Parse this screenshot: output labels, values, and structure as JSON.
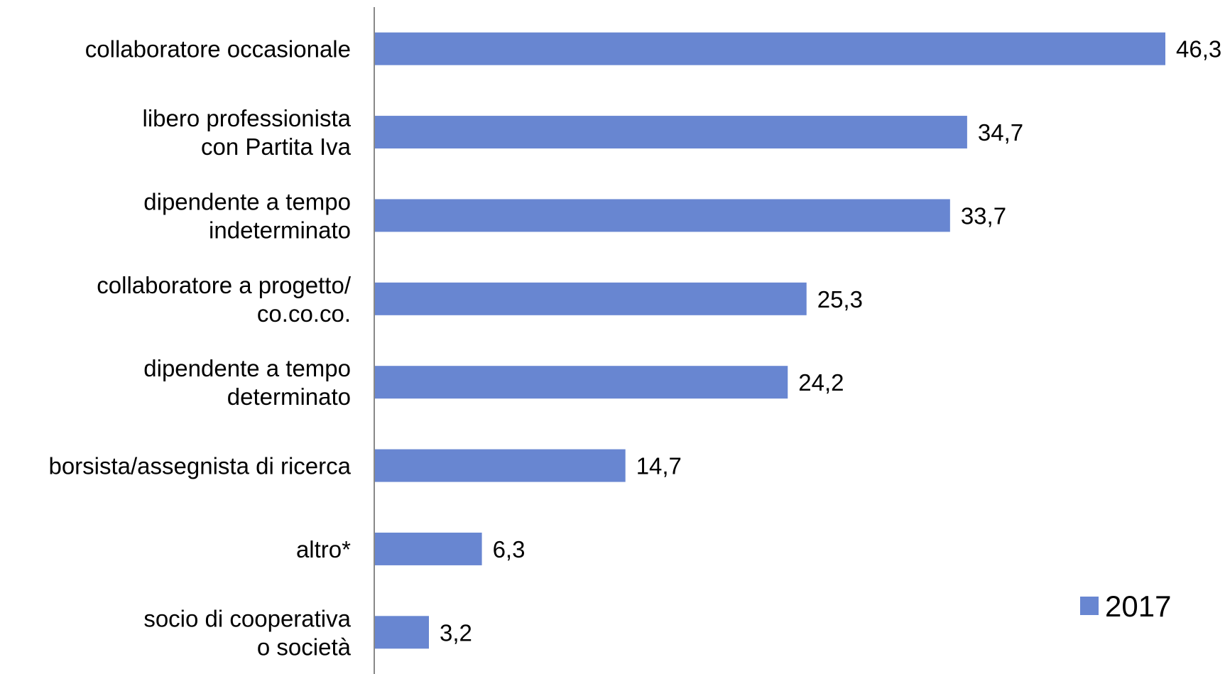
{
  "chart_data": {
    "type": "bar",
    "orientation": "horizontal",
    "categories": [
      [
        "collaboratore occasionale"
      ],
      [
        "libero professionista",
        "con Partita Iva"
      ],
      [
        "dipendente a tempo",
        "indeterminato"
      ],
      [
        "collaboratore a progetto/",
        "co.co.co."
      ],
      [
        "dipendente a tempo",
        "determinato"
      ],
      [
        "borsista/assegnista di ricerca"
      ],
      [
        "altro*"
      ],
      [
        "socio di cooperativa",
        "o società"
      ]
    ],
    "series": [
      {
        "name": "2017",
        "values": [
          46.3,
          34.7,
          33.7,
          25.3,
          24.2,
          14.7,
          6.3,
          3.2
        ],
        "value_labels": [
          "46,3",
          "34,7",
          "33,7",
          "25,3",
          "24,2",
          "14,7",
          "6,3",
          "3,2"
        ],
        "color": "#6886d1"
      }
    ],
    "xlim": [
      0,
      46.3
    ],
    "grid": false,
    "legend": "bottom-right",
    "axis_color": "#888888"
  }
}
